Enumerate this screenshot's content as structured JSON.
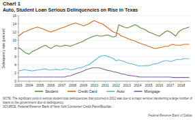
{
  "chart_data": {
    "type": "line",
    "title": "Chart 1",
    "subtitle": "Auto, Student Loan Serious Delinquencies on Rise in Texas",
    "y_label": "Delinquency rate (percent)",
    "annotations": [
      "NOTE: The significant jump in serious student loan delinquencies that occurred in 2012 was due to a major servicer transferring a large number of",
      "loans to the government due to delinquency.",
      "SOURCE: Federal Reserve Bank of New York Consumer Credit Panel/Equifax.",
      "Federal Reserve Bank of Dallas"
    ],
    "x": [
      2003.0,
      2003.25,
      2003.5,
      2003.75,
      2004.0,
      2004.25,
      2004.5,
      2004.75,
      2005.0,
      2005.25,
      2005.5,
      2005.75,
      2006.0,
      2006.25,
      2006.5,
      2006.75,
      2007.0,
      2007.25,
      2007.5,
      2007.75,
      2008.0,
      2008.25,
      2008.5,
      2008.75,
      2009.0,
      2009.25,
      2009.5,
      2009.75,
      2010.0,
      2010.25,
      2010.5,
      2010.75,
      2011.0,
      2011.25,
      2011.5,
      2011.75,
      2012.0,
      2012.25,
      2012.5,
      2012.75,
      2013.0,
      2013.25,
      2013.5,
      2013.75,
      2014.0,
      2014.25,
      2014.5,
      2014.75,
      2015.0,
      2015.25,
      2015.5,
      2015.75,
      2016.0,
      2016.25,
      2016.5,
      2016.75,
      2017.0,
      2017.25,
      2017.5,
      2017.75,
      2018.0,
      2018.25,
      2018.5,
      2018.75
    ],
    "series": [
      {
        "name": "Student",
        "color": "#5a8f3c",
        "values": [
          8.2,
          7.8,
          7.2,
          6.8,
          6.6,
          7.2,
          7.5,
          7.8,
          8.2,
          8.5,
          8.8,
          8.3,
          8.0,
          8.4,
          8.7,
          8.5,
          8.5,
          8.8,
          8.7,
          8.5,
          8.8,
          9.0,
          9.3,
          9.5,
          9.8,
          10.2,
          10.5,
          10.8,
          11.0,
          11.2,
          11.0,
          11.0,
          11.2,
          11.3,
          11.0,
          10.8,
          11.0,
          13.8,
          13.5,
          13.2,
          13.0,
          13.2,
          13.5,
          13.8,
          13.5,
          13.0,
          12.8,
          12.5,
          12.0,
          11.8,
          11.5,
          11.2,
          11.0,
          11.5,
          12.0,
          12.3,
          12.0,
          11.5,
          11.0,
          12.0,
          12.5,
          12.8,
          13.0,
          13.2
        ]
      },
      {
        "name": "Credit Card",
        "color": "#d4681e",
        "values": [
          11.0,
          11.5,
          12.0,
          12.2,
          12.5,
          12.8,
          13.0,
          13.2,
          13.0,
          12.8,
          12.5,
          12.2,
          12.0,
          12.3,
          12.5,
          12.8,
          13.0,
          13.2,
          13.5,
          13.8,
          14.0,
          14.2,
          14.0,
          13.8,
          13.5,
          13.8,
          14.0,
          14.5,
          14.8,
          14.5,
          14.2,
          14.0,
          13.5,
          13.0,
          12.5,
          12.0,
          11.8,
          11.5,
          11.0,
          10.8,
          10.5,
          10.2,
          10.0,
          9.8,
          9.5,
          9.2,
          9.0,
          8.8,
          8.5,
          8.3,
          8.0,
          8.0,
          8.2,
          8.3,
          8.5,
          8.5,
          8.8,
          9.0,
          8.8,
          8.8,
          8.8,
          9.0,
          9.0,
          9.0
        ]
      },
      {
        "name": "Auto",
        "color": "#5bb8d4",
        "values": [
          2.5,
          2.6,
          2.8,
          2.7,
          2.6,
          2.5,
          2.6,
          2.7,
          2.8,
          2.9,
          3.0,
          2.8,
          2.7,
          2.8,
          2.9,
          2.8,
          2.8,
          3.0,
          3.0,
          2.8,
          2.8,
          3.0,
          3.2,
          3.3,
          3.5,
          3.8,
          4.0,
          4.5,
          5.0,
          5.5,
          6.0,
          6.2,
          6.3,
          6.0,
          5.8,
          5.5,
          5.0,
          5.2,
          5.0,
          4.8,
          4.5,
          4.3,
          4.2,
          4.0,
          3.8,
          3.7,
          3.7,
          3.8,
          3.8,
          4.0,
          4.2,
          4.3,
          4.5,
          4.8,
          5.0,
          5.0,
          4.8,
          5.0,
          5.2,
          5.3,
          5.3,
          5.5,
          5.5,
          5.5
        ]
      },
      {
        "name": "Mortgage",
        "color": "#7b5ea7",
        "values": [
          1.0,
          1.0,
          1.0,
          1.0,
          1.0,
          1.0,
          1.0,
          1.0,
          1.0,
          1.0,
          1.0,
          1.0,
          1.0,
          1.0,
          1.0,
          1.0,
          1.0,
          1.0,
          1.2,
          1.3,
          1.5,
          1.8,
          2.0,
          2.2,
          2.5,
          2.8,
          3.0,
          3.2,
          3.3,
          3.3,
          3.2,
          3.0,
          2.8,
          2.6,
          2.5,
          2.3,
          2.2,
          2.0,
          1.8,
          1.7,
          1.5,
          1.4,
          1.3,
          1.2,
          1.1,
          1.0,
          1.0,
          1.0,
          1.0,
          1.0,
          1.0,
          1.0,
          1.0,
          1.0,
          1.0,
          1.0,
          1.0,
          0.9,
          0.9,
          0.9,
          0.9,
          0.9,
          0.9,
          0.9
        ]
      }
    ],
    "xlim": [
      2003,
      2018.9
    ],
    "xticks": [
      2003,
      2004,
      2005,
      2006,
      2007,
      2008,
      2009,
      2010,
      2011,
      2012,
      2013,
      2014,
      2015,
      2016,
      2017,
      2018
    ],
    "ylim": [
      0,
      16
    ],
    "yticks": [
      0,
      2,
      4,
      6,
      8,
      10,
      12,
      14,
      16
    ],
    "grid": true,
    "legend": "bottom"
  }
}
